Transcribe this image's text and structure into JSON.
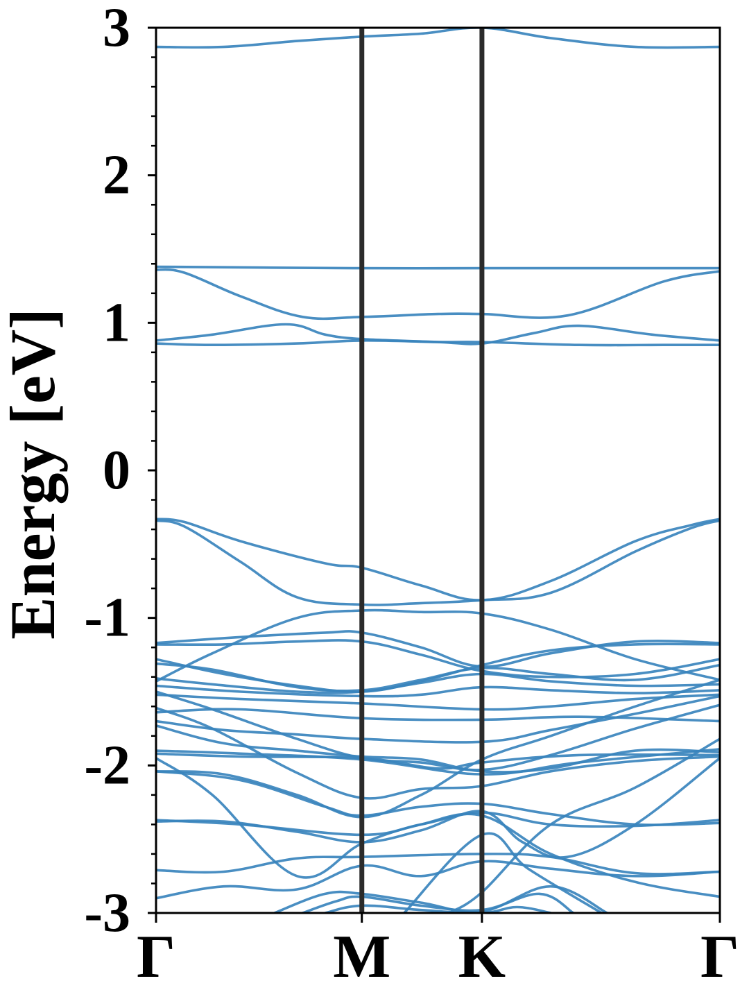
{
  "chart_data": {
    "type": "line",
    "ylabel": "Energy [eV]",
    "ylim": [
      -3,
      3
    ],
    "yticks": [
      3,
      2,
      1,
      0,
      -1,
      -2,
      -3
    ],
    "xlim": [
      0,
      1
    ],
    "kpoints": [
      {
        "label": "Γ",
        "x": 0.0
      },
      {
        "label": "M",
        "x": 0.365
      },
      {
        "label": "K",
        "x": 0.578
      },
      {
        "label": "Γ",
        "x": 1.0
      }
    ],
    "grid": false,
    "colors": {
      "bands": "#3a84bd",
      "kpath_lines": "#2b2b2b",
      "axes": "#000000"
    },
    "bands": [
      [
        [
          0,
          2.87
        ],
        [
          0.12,
          2.87
        ],
        [
          0.25,
          2.91
        ],
        [
          0.365,
          2.94
        ],
        [
          0.47,
          2.96
        ],
        [
          0.578,
          3.0
        ],
        [
          0.7,
          2.93
        ],
        [
          0.85,
          2.87
        ],
        [
          1,
          2.87
        ]
      ],
      [
        [
          0,
          1.38
        ],
        [
          0.365,
          1.37
        ],
        [
          0.578,
          1.37
        ],
        [
          1,
          1.37
        ]
      ],
      [
        [
          0,
          1.36
        ],
        [
          0.05,
          1.34
        ],
        [
          0.15,
          1.18
        ],
        [
          0.26,
          1.04
        ],
        [
          0.365,
          1.04
        ],
        [
          0.5,
          1.06
        ],
        [
          0.578,
          1.06
        ],
        [
          0.73,
          1.05
        ],
        [
          0.9,
          1.28
        ],
        [
          1,
          1.35
        ]
      ],
      [
        [
          0,
          0.88
        ],
        [
          0.1,
          0.92
        ],
        [
          0.23,
          0.99
        ],
        [
          0.3,
          0.92
        ],
        [
          0.365,
          0.89
        ],
        [
          0.5,
          0.87
        ],
        [
          0.578,
          0.86
        ],
        [
          0.67,
          0.93
        ],
        [
          0.75,
          0.98
        ],
        [
          0.88,
          0.92
        ],
        [
          1,
          0.88
        ]
      ],
      [
        [
          0,
          0.86
        ],
        [
          0.1,
          0.85
        ],
        [
          0.25,
          0.86
        ],
        [
          0.365,
          0.88
        ],
        [
          0.5,
          0.87
        ],
        [
          0.578,
          0.87
        ],
        [
          0.75,
          0.85
        ],
        [
          0.9,
          0.85
        ],
        [
          1,
          0.85
        ]
      ],
      [
        [
          0,
          -0.33
        ],
        [
          0.05,
          -0.35
        ],
        [
          0.15,
          -0.48
        ],
        [
          0.3,
          -0.63
        ],
        [
          0.365,
          -0.66
        ],
        [
          0.47,
          -0.78
        ],
        [
          0.578,
          -0.88
        ],
        [
          0.7,
          -0.75
        ],
        [
          0.85,
          -0.48
        ],
        [
          0.95,
          -0.37
        ],
        [
          1,
          -0.33
        ]
      ],
      [
        [
          0,
          -0.34
        ],
        [
          0.05,
          -0.38
        ],
        [
          0.15,
          -0.62
        ],
        [
          0.25,
          -0.86
        ],
        [
          0.365,
          -0.91
        ],
        [
          0.47,
          -0.9
        ],
        [
          0.578,
          -0.88
        ],
        [
          0.7,
          -0.83
        ],
        [
          0.85,
          -0.55
        ],
        [
          0.95,
          -0.39
        ],
        [
          1,
          -0.34
        ]
      ],
      [
        [
          0,
          -1.43
        ],
        [
          0.1,
          -1.24
        ],
        [
          0.25,
          -1.0
        ],
        [
          0.365,
          -0.95
        ],
        [
          0.47,
          -0.96
        ],
        [
          0.578,
          -0.97
        ],
        [
          0.7,
          -1.08
        ],
        [
          0.85,
          -1.28
        ],
        [
          1,
          -1.42
        ]
      ],
      [
        [
          0,
          -1.17
        ],
        [
          0.15,
          -1.13
        ],
        [
          0.3,
          -1.1
        ],
        [
          0.365,
          -1.1
        ],
        [
          0.47,
          -1.2
        ],
        [
          0.578,
          -1.33
        ],
        [
          0.7,
          -1.24
        ],
        [
          0.85,
          -1.16
        ],
        [
          1,
          -1.17
        ]
      ],
      [
        [
          0,
          -1.18
        ],
        [
          0.12,
          -1.18
        ],
        [
          0.25,
          -1.16
        ],
        [
          0.365,
          -1.16
        ],
        [
          0.47,
          -1.25
        ],
        [
          0.578,
          -1.36
        ],
        [
          0.7,
          -1.4
        ],
        [
          0.85,
          -1.38
        ],
        [
          1,
          -1.28
        ]
      ],
      [
        [
          0,
          -1.28
        ],
        [
          0.12,
          -1.38
        ],
        [
          0.25,
          -1.46
        ],
        [
          0.365,
          -1.5
        ],
        [
          0.47,
          -1.43
        ],
        [
          0.578,
          -1.32
        ],
        [
          0.7,
          -1.22
        ],
        [
          0.85,
          -1.18
        ],
        [
          1,
          -1.18
        ]
      ],
      [
        [
          0,
          -1.31
        ],
        [
          0.1,
          -1.35
        ],
        [
          0.25,
          -1.47
        ],
        [
          0.365,
          -1.49
        ],
        [
          0.47,
          -1.42
        ],
        [
          0.578,
          -1.34
        ],
        [
          0.7,
          -1.38
        ],
        [
          0.85,
          -1.42
        ],
        [
          1,
          -1.32
        ]
      ],
      [
        [
          0,
          -1.41
        ],
        [
          0.1,
          -1.45
        ],
        [
          0.25,
          -1.5
        ],
        [
          0.365,
          -1.5
        ],
        [
          0.47,
          -1.44
        ],
        [
          0.578,
          -1.38
        ],
        [
          0.7,
          -1.43
        ],
        [
          0.85,
          -1.46
        ],
        [
          1,
          -1.45
        ]
      ],
      [
        [
          0,
          -1.46
        ],
        [
          0.15,
          -1.5
        ],
        [
          0.365,
          -1.53
        ],
        [
          0.47,
          -1.52
        ],
        [
          0.578,
          -1.47
        ],
        [
          0.7,
          -1.49
        ],
        [
          0.85,
          -1.51
        ],
        [
          1,
          -1.49
        ]
      ],
      [
        [
          0,
          -1.52
        ],
        [
          0.15,
          -1.55
        ],
        [
          0.365,
          -1.58
        ],
        [
          0.578,
          -1.62
        ],
        [
          0.7,
          -1.6
        ],
        [
          0.85,
          -1.55
        ],
        [
          1,
          -1.52
        ]
      ],
      [
        [
          0,
          -1.64
        ],
        [
          0.15,
          -1.62
        ],
        [
          0.365,
          -1.68
        ],
        [
          0.578,
          -1.69
        ],
        [
          0.75,
          -1.67
        ],
        [
          1,
          -1.7
        ]
      ],
      [
        [
          0,
          -1.7
        ],
        [
          0.12,
          -1.76
        ],
        [
          0.25,
          -1.79
        ],
        [
          0.365,
          -1.82
        ],
        [
          0.578,
          -1.84
        ],
        [
          0.7,
          -1.76
        ],
        [
          0.85,
          -1.65
        ],
        [
          1,
          -1.53
        ]
      ],
      [
        [
          0,
          -1.5
        ],
        [
          0.1,
          -1.62
        ],
        [
          0.25,
          -1.82
        ],
        [
          0.365,
          -1.95
        ],
        [
          0.47,
          -1.98
        ],
        [
          0.578,
          -2.03
        ],
        [
          0.7,
          -1.93
        ],
        [
          0.85,
          -1.75
        ],
        [
          1,
          -1.59
        ]
      ],
      [
        [
          0,
          -1.73
        ],
        [
          0.12,
          -1.85
        ],
        [
          0.25,
          -1.9
        ],
        [
          0.365,
          -1.94
        ],
        [
          0.47,
          -1.96
        ],
        [
          0.578,
          -2.04
        ],
        [
          0.7,
          -2.02
        ],
        [
          0.85,
          -1.9
        ],
        [
          1,
          -1.91
        ]
      ],
      [
        [
          0,
          -1.9
        ],
        [
          0.15,
          -1.92
        ],
        [
          0.365,
          -1.96
        ],
        [
          0.578,
          -2.06
        ],
        [
          0.75,
          -1.98
        ],
        [
          1,
          -1.89
        ]
      ],
      [
        [
          0,
          -1.92
        ],
        [
          0.15,
          -1.94
        ],
        [
          0.365,
          -1.95
        ],
        [
          0.5,
          -2.02
        ],
        [
          0.578,
          -1.98
        ],
        [
          0.75,
          -1.93
        ],
        [
          1,
          -1.93
        ]
      ],
      [
        [
          0,
          -1.61
        ],
        [
          0.1,
          -1.75
        ],
        [
          0.25,
          -2.05
        ],
        [
          0.365,
          -2.22
        ],
        [
          0.47,
          -2.16
        ],
        [
          0.578,
          -2.14
        ],
        [
          0.7,
          -2.04
        ],
        [
          0.85,
          -1.97
        ],
        [
          1,
          -1.94
        ]
      ],
      [
        [
          0,
          -2.04
        ],
        [
          0.12,
          -2.06
        ],
        [
          0.25,
          -2.2
        ],
        [
          0.365,
          -2.35
        ],
        [
          0.47,
          -2.2
        ],
        [
          0.578,
          -1.96
        ],
        [
          0.7,
          -1.8
        ],
        [
          0.85,
          -1.6
        ],
        [
          1,
          -1.42
        ]
      ],
      [
        [
          0,
          -2.04
        ],
        [
          0.15,
          -2.1
        ],
        [
          0.3,
          -2.28
        ],
        [
          0.365,
          -2.34
        ],
        [
          0.47,
          -2.28
        ],
        [
          0.578,
          -2.26
        ],
        [
          0.7,
          -2.33
        ],
        [
          0.85,
          -2.4
        ],
        [
          1,
          -2.39
        ]
      ],
      [
        [
          0,
          -2.37
        ],
        [
          0.15,
          -2.4
        ],
        [
          0.365,
          -2.47
        ],
        [
          0.47,
          -2.4
        ],
        [
          0.578,
          -2.32
        ],
        [
          0.7,
          -2.4
        ],
        [
          0.85,
          -2.41
        ],
        [
          1,
          -2.37
        ]
      ],
      [
        [
          0,
          -2.38
        ],
        [
          0.12,
          -2.38
        ],
        [
          0.25,
          -2.45
        ],
        [
          0.365,
          -2.52
        ],
        [
          0.47,
          -2.44
        ],
        [
          0.578,
          -2.31
        ],
        [
          0.65,
          -2.52
        ],
        [
          0.73,
          -2.62
        ],
        [
          0.85,
          -2.4
        ],
        [
          1,
          -1.95
        ]
      ],
      [
        [
          0,
          -1.95
        ],
        [
          0.1,
          -2.2
        ],
        [
          0.25,
          -2.75
        ],
        [
          0.365,
          -2.53
        ],
        [
          0.47,
          -2.4
        ],
        [
          0.578,
          -2.34
        ],
        [
          0.7,
          -2.6
        ],
        [
          0.85,
          -2.79
        ],
        [
          1,
          -2.89
        ]
      ],
      [
        [
          0,
          -2.71
        ],
        [
          0.12,
          -2.72
        ],
        [
          0.25,
          -2.63
        ],
        [
          0.365,
          -2.62
        ],
        [
          0.578,
          -2.6
        ],
        [
          0.7,
          -2.62
        ],
        [
          0.85,
          -2.73
        ],
        [
          1,
          -2.72
        ]
      ],
      [
        [
          0,
          -2.9
        ],
        [
          0.12,
          -2.82
        ],
        [
          0.25,
          -2.84
        ],
        [
          0.365,
          -2.68
        ],
        [
          0.47,
          -2.75
        ],
        [
          0.578,
          -2.65
        ],
        [
          0.7,
          -2.7
        ],
        [
          0.85,
          -2.75
        ],
        [
          1,
          -2.72
        ]
      ],
      [
        [
          0.21,
          -3.0
        ],
        [
          0.3,
          -2.87
        ],
        [
          0.365,
          -2.87
        ],
        [
          0.47,
          -2.93
        ],
        [
          0.578,
          -2.99
        ],
        [
          0.7,
          -2.82
        ],
        [
          0.8,
          -3.0
        ]
      ],
      [
        [
          0.26,
          -3.0
        ],
        [
          0.32,
          -2.92
        ],
        [
          0.365,
          -2.89
        ],
        [
          0.47,
          -2.95
        ],
        [
          0.578,
          -2.98
        ],
        [
          0.68,
          -2.87
        ],
        [
          0.74,
          -3.0
        ]
      ],
      [
        [
          0.3,
          -3.0
        ],
        [
          0.365,
          -2.95
        ],
        [
          0.47,
          -2.98
        ],
        [
          0.578,
          -3.0
        ],
        [
          0.64,
          -2.96
        ],
        [
          0.7,
          -3.0
        ]
      ],
      [
        [
          0.44,
          -3.0
        ],
        [
          0.578,
          -2.47
        ],
        [
          0.66,
          -2.7
        ],
        [
          0.79,
          -3.0
        ]
      ],
      [
        [
          0.52,
          -3.0
        ],
        [
          0.578,
          -2.86
        ],
        [
          0.7,
          -2.4
        ],
        [
          0.85,
          -2.15
        ],
        [
          1,
          -1.82
        ]
      ]
    ]
  }
}
